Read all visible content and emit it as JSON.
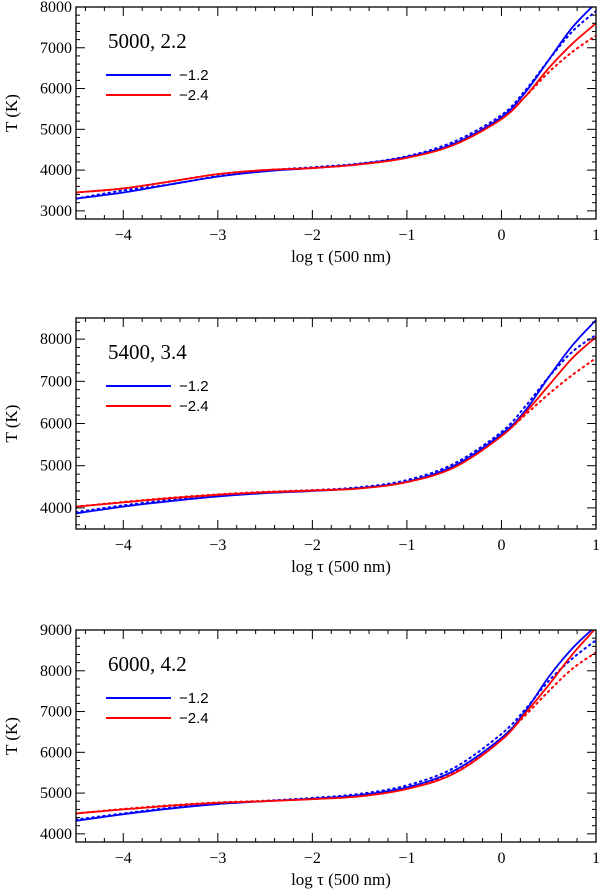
{
  "figure": {
    "background": "#ffffff",
    "axis_color": "#000000"
  },
  "legend": {
    "entries": [
      {
        "label": "−1.2",
        "color": "#0000ff"
      },
      {
        "label": "−2.4",
        "color": "#ff0000"
      }
    ]
  },
  "chart_data": [
    {
      "type": "line",
      "title": "5000, 2.2",
      "xlabel": "log τ (500 nm)",
      "ylabel": "T (K)",
      "xlim": [
        -4.5,
        1.0
      ],
      "ylim": [
        2800,
        8000
      ],
      "xticks": [
        -4,
        -3,
        -2,
        -1,
        0,
        1
      ],
      "xtick_labels": [
        "−4",
        "−3",
        "−2",
        "−1",
        "0",
        "1"
      ],
      "yticks": [
        3000,
        4000,
        5000,
        6000,
        7000,
        8000
      ],
      "ytick_labels": [
        "3000",
        "4000",
        "5000",
        "6000",
        "7000",
        "8000"
      ],
      "x": [
        -4.5,
        -4.0,
        -3.5,
        -3.0,
        -2.5,
        -2.0,
        -1.5,
        -1.0,
        -0.5,
        0.0,
        0.25,
        0.5,
        0.75,
        1.0
      ],
      "series": [
        {
          "name": "−1.2",
          "color": "#0000ff",
          "style": "solid",
          "values": [
            3300,
            3450,
            3650,
            3840,
            3970,
            4050,
            4150,
            4320,
            4650,
            5300,
            5900,
            6700,
            7500,
            8100
          ]
        },
        {
          "name": "−2.4",
          "color": "#ff0000",
          "style": "solid",
          "values": [
            3450,
            3550,
            3720,
            3900,
            4000,
            4050,
            4140,
            4300,
            4620,
            5250,
            5800,
            6500,
            7100,
            7600
          ]
        },
        {
          "name": "−1.2 (dotted)",
          "color": "#0000ff",
          "style": "dotted",
          "values": [
            3300,
            3500,
            3650,
            3850,
            3990,
            4070,
            4160,
            4340,
            4700,
            5350,
            5950,
            6700,
            7400,
            7900
          ]
        },
        {
          "name": "−2.4 (dotted)",
          "color": "#ff0000",
          "style": "dotted",
          "values": [
            3450,
            3550,
            3720,
            3900,
            4000,
            4050,
            4140,
            4310,
            4650,
            5300,
            5800,
            6400,
            6900,
            7300
          ]
        }
      ]
    },
    {
      "type": "line",
      "title": "5400, 3.4",
      "xlabel": "log τ (500 nm)",
      "ylabel": "T (K)",
      "xlim": [
        -4.5,
        1.0
      ],
      "ylim": [
        3500,
        8500
      ],
      "xticks": [
        -4,
        -3,
        -2,
        -1,
        0,
        1
      ],
      "xtick_labels": [
        "−4",
        "−3",
        "−2",
        "−1",
        "0",
        "1"
      ],
      "yticks": [
        4000,
        5000,
        6000,
        7000,
        8000
      ],
      "ytick_labels": [
        "4000",
        "5000",
        "6000",
        "7000",
        "8000"
      ],
      "x": [
        -4.5,
        -4.0,
        -3.5,
        -3.0,
        -2.5,
        -2.0,
        -1.5,
        -1.0,
        -0.5,
        0.0,
        0.25,
        0.5,
        0.75,
        1.0
      ],
      "series": [
        {
          "name": "−1.2",
          "color": "#0000ff",
          "style": "solid",
          "values": [
            3870,
            4030,
            4160,
            4270,
            4350,
            4400,
            4470,
            4620,
            5000,
            5750,
            6300,
            7100,
            7850,
            8450
          ]
        },
        {
          "name": "−2.4",
          "color": "#ff0000",
          "style": "solid",
          "values": [
            4030,
            4130,
            4230,
            4310,
            4370,
            4410,
            4460,
            4610,
            4960,
            5700,
            6250,
            6900,
            7550,
            8050
          ]
        },
        {
          "name": "−1.2 (dotted)",
          "color": "#0000ff",
          "style": "dotted",
          "values": [
            3900,
            4060,
            4190,
            4290,
            4370,
            4420,
            4490,
            4660,
            5050,
            5800,
            6400,
            7100,
            7700,
            8100
          ]
        },
        {
          "name": "−2.4 (dotted)",
          "color": "#ff0000",
          "style": "dotted",
          "values": [
            4030,
            4140,
            4240,
            4320,
            4380,
            4420,
            4470,
            4620,
            4980,
            5720,
            6200,
            6700,
            7150,
            7550
          ]
        }
      ]
    },
    {
      "type": "line",
      "title": "6000, 4.2",
      "xlabel": "log τ (500 nm)",
      "ylabel": "T (K)",
      "xlim": [
        -4.5,
        1.0
      ],
      "ylim": [
        3800,
        9000
      ],
      "xticks": [
        -4,
        -3,
        -2,
        -1,
        0,
        1
      ],
      "xtick_labels": [
        "−4",
        "−3",
        "−2",
        "−1",
        "0",
        "1"
      ],
      "yticks": [
        4000,
        5000,
        6000,
        7000,
        8000,
        9000
      ],
      "ytick_labels": [
        "4000",
        "5000",
        "6000",
        "7000",
        "8000",
        "9000"
      ],
      "x": [
        -4.5,
        -4.0,
        -3.5,
        -3.0,
        -2.5,
        -2.0,
        -1.5,
        -1.0,
        -0.5,
        0.0,
        0.25,
        0.5,
        0.75,
        1.0
      ],
      "series": [
        {
          "name": "−1.2",
          "color": "#0000ff",
          "style": "solid",
          "values": [
            4320,
            4480,
            4620,
            4730,
            4800,
            4860,
            4950,
            5140,
            5550,
            6350,
            7000,
            7850,
            8550,
            9100
          ]
        },
        {
          "name": "−2.4",
          "color": "#ff0000",
          "style": "solid",
          "values": [
            4500,
            4600,
            4690,
            4760,
            4800,
            4850,
            4920,
            5100,
            5480,
            6300,
            6950,
            7650,
            8400,
            9050
          ]
        },
        {
          "name": "−1.2 (dotted)",
          "color": "#0000ff",
          "style": "dotted",
          "values": [
            4350,
            4500,
            4640,
            4740,
            4810,
            4880,
            4980,
            5190,
            5620,
            6450,
            7050,
            7750,
            8300,
            8750
          ]
        },
        {
          "name": "−2.4 (dotted)",
          "color": "#ff0000",
          "style": "dotted",
          "values": [
            4500,
            4610,
            4700,
            4770,
            4810,
            4860,
            4940,
            5130,
            5520,
            6350,
            6900,
            7500,
            8050,
            8450
          ]
        }
      ]
    }
  ]
}
